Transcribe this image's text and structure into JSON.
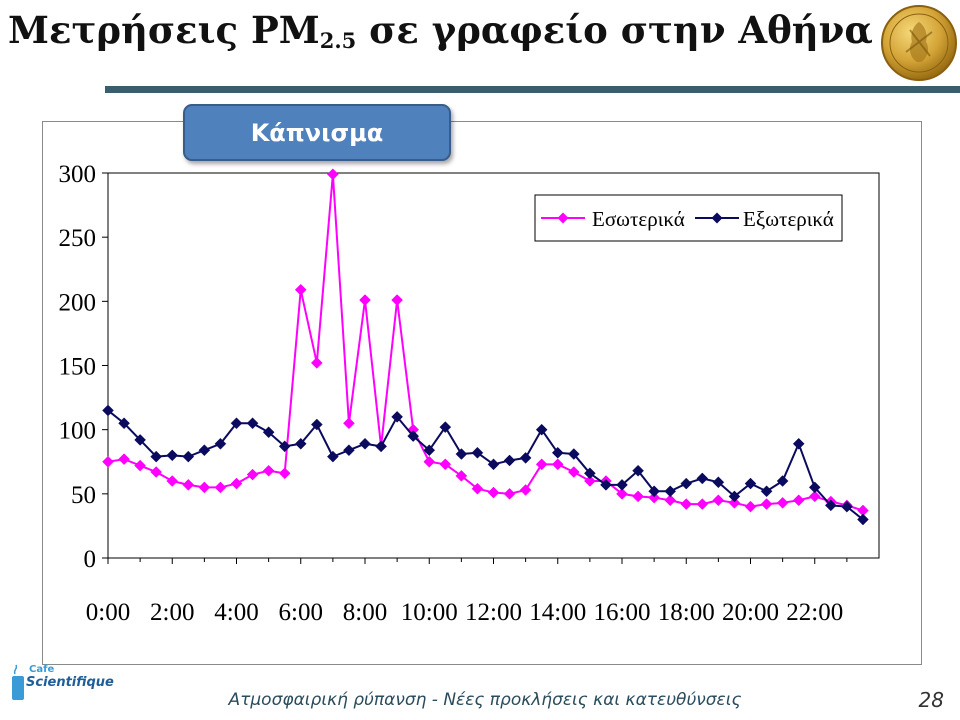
{
  "slide": {
    "title_main": "Μετρήσεις PM",
    "title_sub": "2.5",
    "title_rest": " σε γραφείο στην Αθήνα",
    "badge": "Κάπνισμα",
    "footer": "Ατμοσφαιρική ρύπανση - Νέες προκλήσεις και κατευθύνσεις",
    "page_number": "28",
    "logo_line1": "Cafe",
    "logo_line2": "Scientifique"
  },
  "colors": {
    "indoor": "#ff00ff",
    "outdoor": "#0a0a5e",
    "title_rule": "#3a5f6b",
    "badge": "#4f81bd"
  },
  "chart_data": {
    "type": "line",
    "title": "",
    "xlabel": "",
    "ylabel": "",
    "ylim": [
      0,
      300
    ],
    "y_ticks": [
      "0",
      "50",
      "100",
      "150",
      "200",
      "250",
      "300"
    ],
    "x_tick_labels": [
      "0:00",
      "2:00",
      "4:00",
      "6:00",
      "8:00",
      "10:00",
      "12:00",
      "14:00",
      "16:00",
      "18:00",
      "20:00",
      "22:00"
    ],
    "x_hours": [
      0,
      0.5,
      1,
      1.5,
      2,
      2.5,
      3,
      3.5,
      4,
      4.5,
      5,
      5.5,
      6,
      6.5,
      7,
      7.5,
      8,
      8.5,
      9,
      9.5,
      10,
      10.5,
      11,
      11.5,
      12,
      12.5,
      13,
      13.5,
      14,
      14.5,
      15,
      15.5,
      16,
      16.5,
      17,
      17.5,
      18,
      18.5,
      19,
      19.5,
      20,
      20.5,
      21,
      21.5,
      22,
      22.5,
      23,
      23.5
    ],
    "legend_position": "top-right",
    "series": [
      {
        "name": "Εσωτερικά",
        "values": [
          75,
          77,
          72,
          67,
          60,
          57,
          55,
          55,
          58,
          65,
          68,
          66,
          209,
          152,
          299,
          105,
          201,
          87,
          201,
          100,
          75,
          73,
          64,
          54,
          51,
          50,
          53,
          73,
          73,
          67,
          60,
          60,
          50,
          48,
          47,
          45,
          42,
          42,
          45,
          43,
          40,
          42,
          43,
          45,
          48,
          44,
          41,
          37
        ]
      },
      {
        "name": "Εξωτερικά",
        "values": [
          115,
          105,
          92,
          79,
          80,
          79,
          84,
          89,
          105,
          105,
          98,
          87,
          89,
          104,
          79,
          84,
          89,
          87,
          110,
          95,
          84,
          102,
          81,
          82,
          73,
          76,
          78,
          100,
          82,
          81,
          66,
          57,
          57,
          68,
          52,
          52,
          58,
          62,
          59,
          48,
          58,
          52,
          60,
          89,
          55,
          41,
          40,
          30
        ]
      }
    ]
  }
}
